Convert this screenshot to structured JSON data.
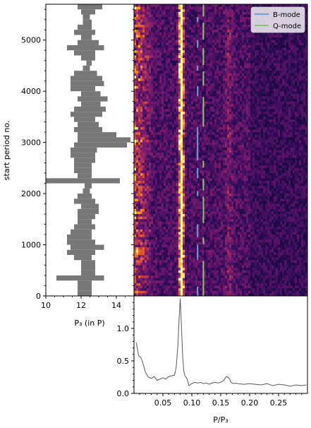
{
  "chart_data": [
    {
      "type": "heatmap",
      "panel": "fluctuation-spectrum",
      "xlabel": "",
      "ylabel": "start period no.",
      "ylim": [
        0,
        5700
      ],
      "y_ticks": [
        0,
        1000,
        2000,
        3000,
        4000,
        5000
      ],
      "y_tick_labels": [
        "0",
        "1000",
        "2000",
        "3000",
        "4000",
        "5000"
      ],
      "colormap": "inferno",
      "legend": {
        "placement": "top-right",
        "entries": [
          {
            "label": "B-mode",
            "color": "#6f9fd8"
          },
          {
            "label": "Q-mode",
            "color": "#8ec27a"
          }
        ]
      },
      "features": {
        "primary_ridge_x": 0.082,
        "secondary_ridge_x": 0.164,
        "b_mode_marker_x": 0.11,
        "q_mode_marker_x": 0.12
      },
      "mode_segments": {
        "B-mode": [
          [
            0,
            180
          ],
          [
            700,
            1000
          ],
          [
            1150,
            1400
          ],
          [
            1950,
            2050
          ],
          [
            2300,
            2500
          ],
          [
            2650,
            3300
          ],
          [
            3900,
            4100
          ],
          [
            4400,
            4500
          ],
          [
            4850,
            5000
          ],
          [
            5350,
            5450
          ]
        ],
        "Q-mode": [
          [
            0,
            680
          ],
          [
            1010,
            1140
          ],
          [
            1420,
            1940
          ],
          [
            2060,
            2290
          ],
          [
            2510,
            2640
          ],
          [
            3310,
            3890
          ],
          [
            4110,
            4390
          ],
          [
            4510,
            4840
          ],
          [
            5010,
            5340
          ],
          [
            5460,
            5700
          ]
        ]
      }
    },
    {
      "type": "area",
      "panel": "p3-distribution",
      "xlabel": "P₃ (in P)",
      "xlim": [
        10,
        15
      ],
      "x_ticks": [
        10,
        12,
        14
      ],
      "x_tick_labels": [
        "10",
        "12",
        "14"
      ],
      "ylim": [
        0,
        5700
      ],
      "y_ticks": [
        0,
        1000,
        2000,
        3000,
        4000,
        5000
      ],
      "color": "#777777",
      "series": [
        {
          "y": [
            0,
            100,
            200,
            300,
            400,
            500,
            600,
            700,
            800,
            900,
            1000,
            1100,
            1200,
            1300,
            1400,
            1500,
            1600,
            1700,
            1800,
            1900,
            2000,
            2100,
            2200,
            2300,
            2400,
            2500,
            2600,
            2700,
            2800,
            2900,
            3000,
            3100,
            3200,
            3300,
            3400,
            3500,
            3600,
            3700,
            3800,
            3900,
            4000,
            4100,
            4200,
            4300,
            4400,
            4500,
            4600,
            4700,
            4800,
            4900,
            5000,
            5100,
            5200,
            5300,
            5400,
            5500,
            5600,
            5700
          ],
          "lo": [
            11.8,
            11.8,
            11.8,
            10.6,
            12.0,
            12.0,
            12.0,
            11.6,
            11.2,
            11.4,
            11.2,
            11.2,
            11.4,
            11.6,
            11.8,
            11.8,
            11.8,
            12.0,
            11.6,
            11.8,
            12.1,
            12.2,
            9.8,
            11.8,
            11.6,
            11.6,
            11.6,
            11.4,
            11.4,
            11.6,
            11.8,
            11.8,
            11.6,
            11.8,
            11.6,
            11.4,
            11.6,
            12.0,
            11.8,
            12.0,
            11.4,
            11.4,
            11.4,
            11.6,
            12.1,
            12.3,
            12.0,
            11.6,
            11.2,
            11.8,
            12.0,
            11.6,
            11.8,
            12.1,
            12.1,
            12.0,
            11.8,
            11.8
          ],
          "hi": [
            12.6,
            12.6,
            12.6,
            13.3,
            12.8,
            12.8,
            12.8,
            12.6,
            12.8,
            13.3,
            12.8,
            12.6,
            12.6,
            12.8,
            12.6,
            12.8,
            13.0,
            13.0,
            12.8,
            12.6,
            12.5,
            12.6,
            14.2,
            12.6,
            12.6,
            12.6,
            12.8,
            12.8,
            12.9,
            14.6,
            14.8,
            14.0,
            13.2,
            13.0,
            12.8,
            13.2,
            13.4,
            13.1,
            13.5,
            13.1,
            12.8,
            13.3,
            13.2,
            12.9,
            12.5,
            12.6,
            12.8,
            12.8,
            13.3,
            13.0,
            12.6,
            12.8,
            12.6,
            12.6,
            12.5,
            12.8,
            13.2,
            13.0
          ]
        }
      ]
    },
    {
      "type": "line",
      "panel": "averaged-spectrum",
      "xlabel": "P/P₃",
      "xlim": [
        0.0,
        0.3
      ],
      "x_ticks": [
        0.05,
        0.1,
        0.15,
        0.2,
        0.25
      ],
      "x_tick_labels": [
        "0.05",
        "0.10",
        "0.15",
        "0.20",
        "0.25"
      ],
      "ylim": [
        0,
        1.5
      ],
      "y_ticks": [
        0.0,
        0.5,
        1.0
      ],
      "y_tick_labels": [
        "0.0",
        "0.5",
        "1.0"
      ],
      "color": "#5a5a5a",
      "series": [
        {
          "x": [
            0.004,
            0.008,
            0.012,
            0.016,
            0.02,
            0.025,
            0.03,
            0.035,
            0.04,
            0.045,
            0.05,
            0.055,
            0.06,
            0.065,
            0.07,
            0.073,
            0.076,
            0.078,
            0.08,
            0.082,
            0.084,
            0.086,
            0.088,
            0.09,
            0.092,
            0.095,
            0.1,
            0.105,
            0.11,
            0.115,
            0.12,
            0.125,
            0.13,
            0.135,
            0.14,
            0.145,
            0.15,
            0.155,
            0.16,
            0.164,
            0.168,
            0.172,
            0.176,
            0.18,
            0.19,
            0.2,
            0.21,
            0.22,
            0.23,
            0.24,
            0.25,
            0.26,
            0.27,
            0.28,
            0.29,
            0.298
          ],
          "y": [
            0.78,
            0.58,
            0.55,
            0.45,
            0.32,
            0.25,
            0.23,
            0.26,
            0.2,
            0.22,
            0.24,
            0.22,
            0.26,
            0.27,
            0.28,
            0.4,
            0.75,
            1.15,
            1.46,
            1.05,
            0.6,
            0.35,
            0.27,
            0.25,
            0.22,
            0.12,
            0.15,
            0.17,
            0.16,
            0.17,
            0.15,
            0.16,
            0.14,
            0.16,
            0.17,
            0.16,
            0.17,
            0.2,
            0.26,
            0.24,
            0.17,
            0.15,
            0.16,
            0.15,
            0.14,
            0.15,
            0.14,
            0.13,
            0.15,
            0.12,
            0.14,
            0.13,
            0.11,
            0.13,
            0.12,
            0.13
          ]
        }
      ]
    }
  ]
}
